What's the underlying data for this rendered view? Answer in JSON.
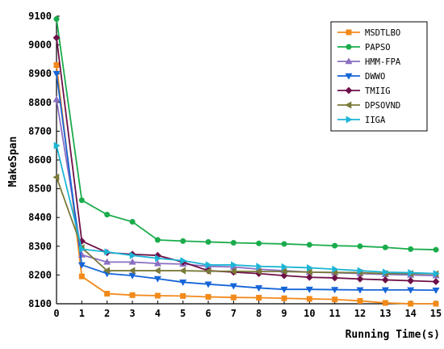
{
  "chart_data": {
    "type": "line",
    "xlabel": "Running Time(s)",
    "ylabel": "MakeSpan",
    "x": [
      0,
      1,
      2,
      3,
      4,
      5,
      6,
      7,
      8,
      9,
      10,
      11,
      12,
      13,
      14,
      15
    ],
    "xlim": [
      0,
      15
    ],
    "ylim": [
      8100,
      9100
    ],
    "yticks": [
      8100,
      8200,
      8300,
      8400,
      8500,
      8600,
      8700,
      8800,
      8900,
      9000,
      9100
    ],
    "grid": false,
    "legend_position": "top-right",
    "series": [
      {
        "name": "MSDTLBO",
        "color": "#f28a1b",
        "marker": "square",
        "values": [
          8930,
          8195,
          8135,
          8130,
          8128,
          8127,
          8124,
          8122,
          8121,
          8119,
          8117,
          8115,
          8110,
          8103,
          8100,
          8100
        ]
      },
      {
        "name": "PAPSO",
        "color": "#1aac4c",
        "marker": "circle",
        "values": [
          9090,
          8460,
          8410,
          8385,
          8322,
          8318,
          8315,
          8312,
          8310,
          8308,
          8305,
          8302,
          8300,
          8296,
          8290,
          8288
        ]
      },
      {
        "name": "HMM-FPA",
        "color": "#8a6fc1",
        "marker": "triangle-up",
        "values": [
          8810,
          8270,
          8245,
          8245,
          8240,
          8238,
          8230,
          8228,
          8220,
          8215,
          8210,
          8208,
          8205,
          8202,
          8200,
          8198
        ]
      },
      {
        "name": "DWWO",
        "color": "#1565d8",
        "marker": "triangle-down",
        "values": [
          8900,
          8235,
          8205,
          8198,
          8187,
          8175,
          8168,
          8162,
          8155,
          8150,
          8150,
          8149,
          8148,
          8148,
          8148,
          8147
        ]
      },
      {
        "name": "TMIIG",
        "color": "#6e1048",
        "marker": "diamond",
        "values": [
          9025,
          8318,
          8278,
          8272,
          8268,
          8245,
          8215,
          8210,
          8205,
          8198,
          8192,
          8190,
          8186,
          8183,
          8180,
          8177
        ]
      },
      {
        "name": "DPSOVND",
        "color": "#7a7a3a",
        "marker": "triangle-left",
        "values": [
          8540,
          8295,
          8215,
          8215,
          8215,
          8215,
          8213,
          8213,
          8212,
          8212,
          8210,
          8209,
          8208,
          8205,
          8205,
          8204
        ]
      },
      {
        "name": "IIGA",
        "color": "#1cb5d6",
        "marker": "triangle-right",
        "values": [
          8650,
          8290,
          8280,
          8268,
          8258,
          8250,
          8235,
          8235,
          8230,
          8228,
          8225,
          8220,
          8215,
          8210,
          8208,
          8205
        ]
      }
    ]
  }
}
